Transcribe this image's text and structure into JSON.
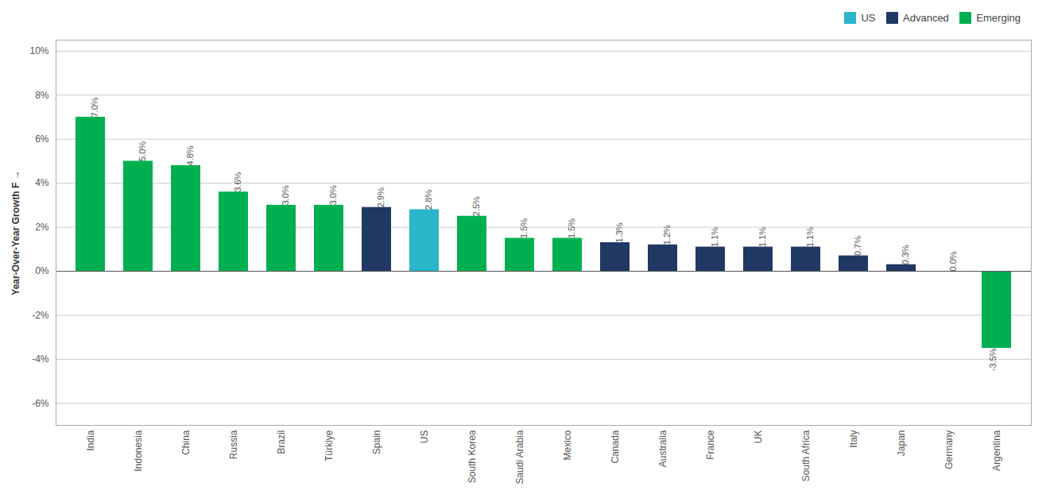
{
  "chart_data": {
    "type": "bar",
    "categories": [
      "India",
      "Indonesia",
      "China",
      "Russia",
      "Brazil",
      "Türkiye",
      "Spain",
      "US",
      "South Korea",
      "Saudi Arabia",
      "Mexico",
      "Canada",
      "Australia",
      "France",
      "UK",
      "South Africa",
      "Italy",
      "Japan",
      "Germany",
      "Argentina"
    ],
    "series": [
      {
        "name": "US",
        "color": "#2ab7ca",
        "values": [
          null,
          null,
          null,
          null,
          null,
          null,
          null,
          2.8,
          null,
          null,
          null,
          null,
          null,
          null,
          null,
          null,
          null,
          null,
          null,
          null
        ],
        "value_labels": [
          null,
          null,
          null,
          null,
          null,
          null,
          null,
          "2.8%",
          null,
          null,
          null,
          null,
          null,
          null,
          null,
          null,
          null,
          null,
          null,
          null
        ]
      },
      {
        "name": "Advanced",
        "color": "#1f3864",
        "values": [
          null,
          null,
          null,
          null,
          null,
          null,
          2.9,
          null,
          null,
          null,
          null,
          1.3,
          1.2,
          1.1,
          1.1,
          1.1,
          0.7,
          0.3,
          0.0,
          null
        ],
        "value_labels": [
          null,
          null,
          null,
          null,
          null,
          null,
          "2.9%",
          null,
          null,
          null,
          null,
          "1.3%",
          "1.2%",
          "1.1%",
          "1.1%",
          "1.1%",
          "0.7%",
          "0.3%",
          "0.0%",
          null
        ]
      },
      {
        "name": "Emerging",
        "color": "#00b050",
        "values": [
          7.0,
          5.0,
          4.8,
          3.6,
          3.0,
          3.0,
          null,
          null,
          2.5,
          1.5,
          1.5,
          null,
          null,
          null,
          null,
          null,
          null,
          null,
          null,
          -3.5
        ],
        "value_labels": [
          "7.0%",
          "5.0%",
          "4.8%",
          "3.6%",
          "3.0%",
          "3.0%",
          null,
          null,
          "2.5%",
          "1.5%",
          "1.5%",
          null,
          null,
          null,
          null,
          null,
          null,
          null,
          null,
          "-3.5%"
        ]
      }
    ],
    "stacked": true,
    "ylabel": "Year-Over-Year Growth F",
    "ylim": [
      -7,
      10.5
    ],
    "yticks": [
      {
        "value": -6,
        "label": "-6%"
      },
      {
        "value": -4,
        "label": "-4%"
      },
      {
        "value": -2,
        "label": "-2%"
      },
      {
        "value": 0,
        "label": "0%"
      },
      {
        "value": 2,
        "label": "2%"
      },
      {
        "value": 4,
        "label": "4%"
      },
      {
        "value": 6,
        "label": "6%"
      },
      {
        "value": 8,
        "label": "8%"
      },
      {
        "value": 10,
        "label": "10%"
      }
    ],
    "grid": true,
    "legend": "upper right",
    "data_labels": true
  }
}
